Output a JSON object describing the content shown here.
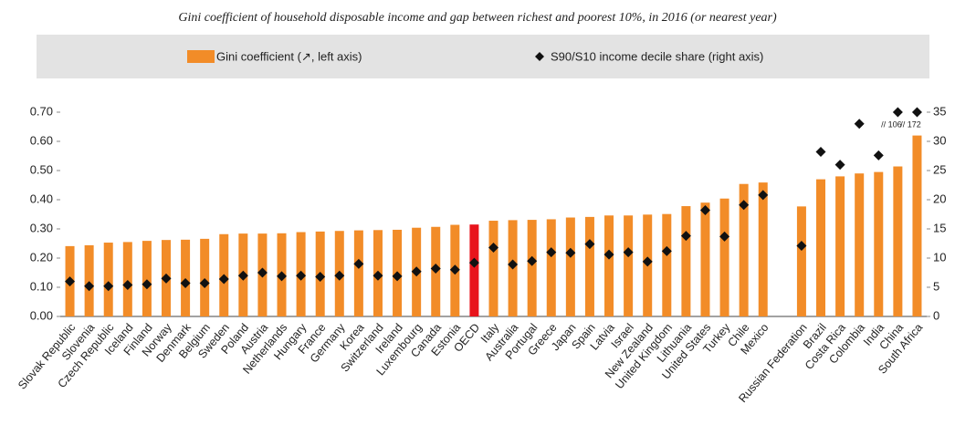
{
  "chart_data": {
    "type": "bar",
    "title": "Gini coefficient of household disposable income and gap between richest and poorest 10%, in 2016 (or nearest year)",
    "categories": [
      "Slovak Republic",
      "Slovenia",
      "Czech Republic",
      "Iceland",
      "Finland",
      "Norway",
      "Denmark",
      "Belgium",
      "Sweden",
      "Poland",
      "Austria",
      "Netherlands",
      "Hungary",
      "France",
      "Germany",
      "Korea",
      "Switzerland",
      "Ireland",
      "Luxembourg",
      "Canada",
      "Estonia",
      "OECD",
      "Italy",
      "Australia",
      "Portugal",
      "Greece",
      "Japan",
      "Spain",
      "Latvia",
      "Israel",
      "New Zealand",
      "United Kingdom",
      "Lithuania",
      "United States",
      "Turkey",
      "Chile",
      "Mexico",
      null,
      "Russian Federation",
      "Brazil",
      "Costa Rica",
      "Colombia",
      "India",
      "China",
      "South Africa"
    ],
    "series": [
      {
        "name": "Gini coefficient (↗, left axis)",
        "type": "bar",
        "axis": "y",
        "color": "#f28c28",
        "colors": [
          "#f28c28",
          "#f28c28",
          "#f28c28",
          "#f28c28",
          "#f28c28",
          "#f28c28",
          "#f28c28",
          "#f28c28",
          "#f28c28",
          "#f28c28",
          "#f28c28",
          "#f28c28",
          "#f28c28",
          "#f28c28",
          "#f28c28",
          "#f28c28",
          "#f28c28",
          "#f28c28",
          "#f28c28",
          "#f28c28",
          "#f28c28",
          "#e8141c",
          "#f28c28",
          "#f28c28",
          "#f28c28",
          "#f28c28",
          "#f28c28",
          "#f28c28",
          "#f28c28",
          "#f28c28",
          "#f28c28",
          "#f28c28",
          "#f28c28",
          "#f28c28",
          "#f28c28",
          "#f28c28",
          "#f28c28",
          null,
          "#f28c28",
          "#f28c28",
          "#f28c28",
          "#f28c28",
          "#f28c28",
          "#f28c28",
          "#f28c28"
        ],
        "values": [
          0.241,
          0.244,
          0.253,
          0.255,
          0.259,
          0.262,
          0.263,
          0.266,
          0.282,
          0.284,
          0.284,
          0.285,
          0.289,
          0.291,
          0.293,
          0.295,
          0.296,
          0.297,
          0.304,
          0.307,
          0.314,
          0.315,
          0.328,
          0.33,
          0.331,
          0.333,
          0.339,
          0.341,
          0.346,
          0.346,
          0.349,
          0.351,
          0.378,
          0.39,
          0.404,
          0.454,
          0.459,
          null,
          0.377,
          0.47,
          0.48,
          0.49,
          0.495,
          0.514,
          0.62
        ]
      },
      {
        "name": "S90/S10 income decile share (right axis)",
        "type": "scatter",
        "axis": "y2",
        "color": "#111111",
        "values": [
          6.0,
          5.2,
          5.2,
          5.4,
          5.5,
          6.5,
          5.7,
          5.7,
          6.4,
          7.0,
          7.5,
          6.9,
          7.0,
          6.8,
          7.0,
          9.0,
          7.0,
          6.9,
          7.7,
          8.2,
          8.0,
          9.2,
          11.8,
          8.9,
          9.5,
          11.0,
          10.9,
          12.4,
          10.6,
          11.0,
          9.4,
          11.2,
          13.8,
          18.2,
          13.7,
          19.1,
          20.8,
          null,
          12.1,
          28.2,
          26.0,
          33.0,
          27.6,
          106,
          172
        ],
        "value_labels": [
          null,
          null,
          null,
          null,
          null,
          null,
          null,
          null,
          null,
          null,
          null,
          null,
          null,
          null,
          null,
          null,
          null,
          null,
          null,
          null,
          null,
          null,
          null,
          null,
          null,
          null,
          null,
          null,
          null,
          null,
          null,
          null,
          null,
          null,
          null,
          null,
          null,
          null,
          null,
          null,
          null,
          null,
          null,
          "// 106",
          "// 172"
        ]
      }
    ],
    "ylim": [
      0,
      0.7
    ],
    "yticks": [
      {
        "value": 0,
        "label": "0.00"
      },
      {
        "value": 0.1,
        "label": "0.10"
      },
      {
        "value": 0.2,
        "label": "0.20"
      },
      {
        "value": 0.3,
        "label": "0.30"
      },
      {
        "value": 0.4,
        "label": "0.40"
      },
      {
        "value": 0.5,
        "label": "0.50"
      },
      {
        "value": 0.6,
        "label": "0.60"
      },
      {
        "value": 0.7,
        "label": "0.70"
      }
    ],
    "y2lim": [
      0,
      35
    ],
    "y2ticks": [
      0,
      5,
      10,
      15,
      20,
      25,
      30,
      35
    ],
    "grid": false,
    "legend": "top"
  }
}
